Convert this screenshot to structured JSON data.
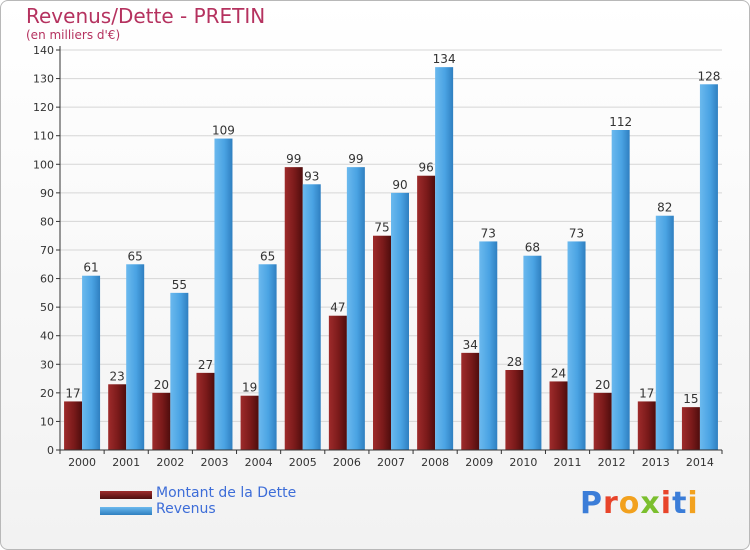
{
  "header": {
    "title": "Revenus/Dette - PRETIN",
    "subtitle": "(en milliers d'€)"
  },
  "colors": {
    "dette": "#7a1a1a",
    "revenus": "#4aa3e3",
    "axis": "#333333",
    "grid": "#d6d6d6"
  },
  "chart_data": {
    "type": "bar",
    "categories": [
      "2000",
      "2001",
      "2002",
      "2003",
      "2004",
      "2005",
      "2006",
      "2007",
      "2008",
      "2009",
      "2010",
      "2011",
      "2012",
      "2013",
      "2014"
    ],
    "series": [
      {
        "name": "Montant de la Dette",
        "values": [
          17,
          23,
          20,
          27,
          19,
          99,
          47,
          75,
          96,
          34,
          28,
          24,
          20,
          17,
          15
        ]
      },
      {
        "name": "Revenus",
        "values": [
          61,
          65,
          55,
          109,
          65,
          93,
          99,
          90,
          134,
          73,
          68,
          73,
          112,
          82,
          128
        ]
      }
    ],
    "ylim": [
      0,
      140
    ],
    "yticks": [
      0,
      10,
      20,
      30,
      40,
      50,
      60,
      70,
      80,
      90,
      100,
      110,
      120,
      130,
      140
    ],
    "grid": true,
    "legend_position": "bottom-left"
  },
  "logo": {
    "text": "Proxiti"
  }
}
